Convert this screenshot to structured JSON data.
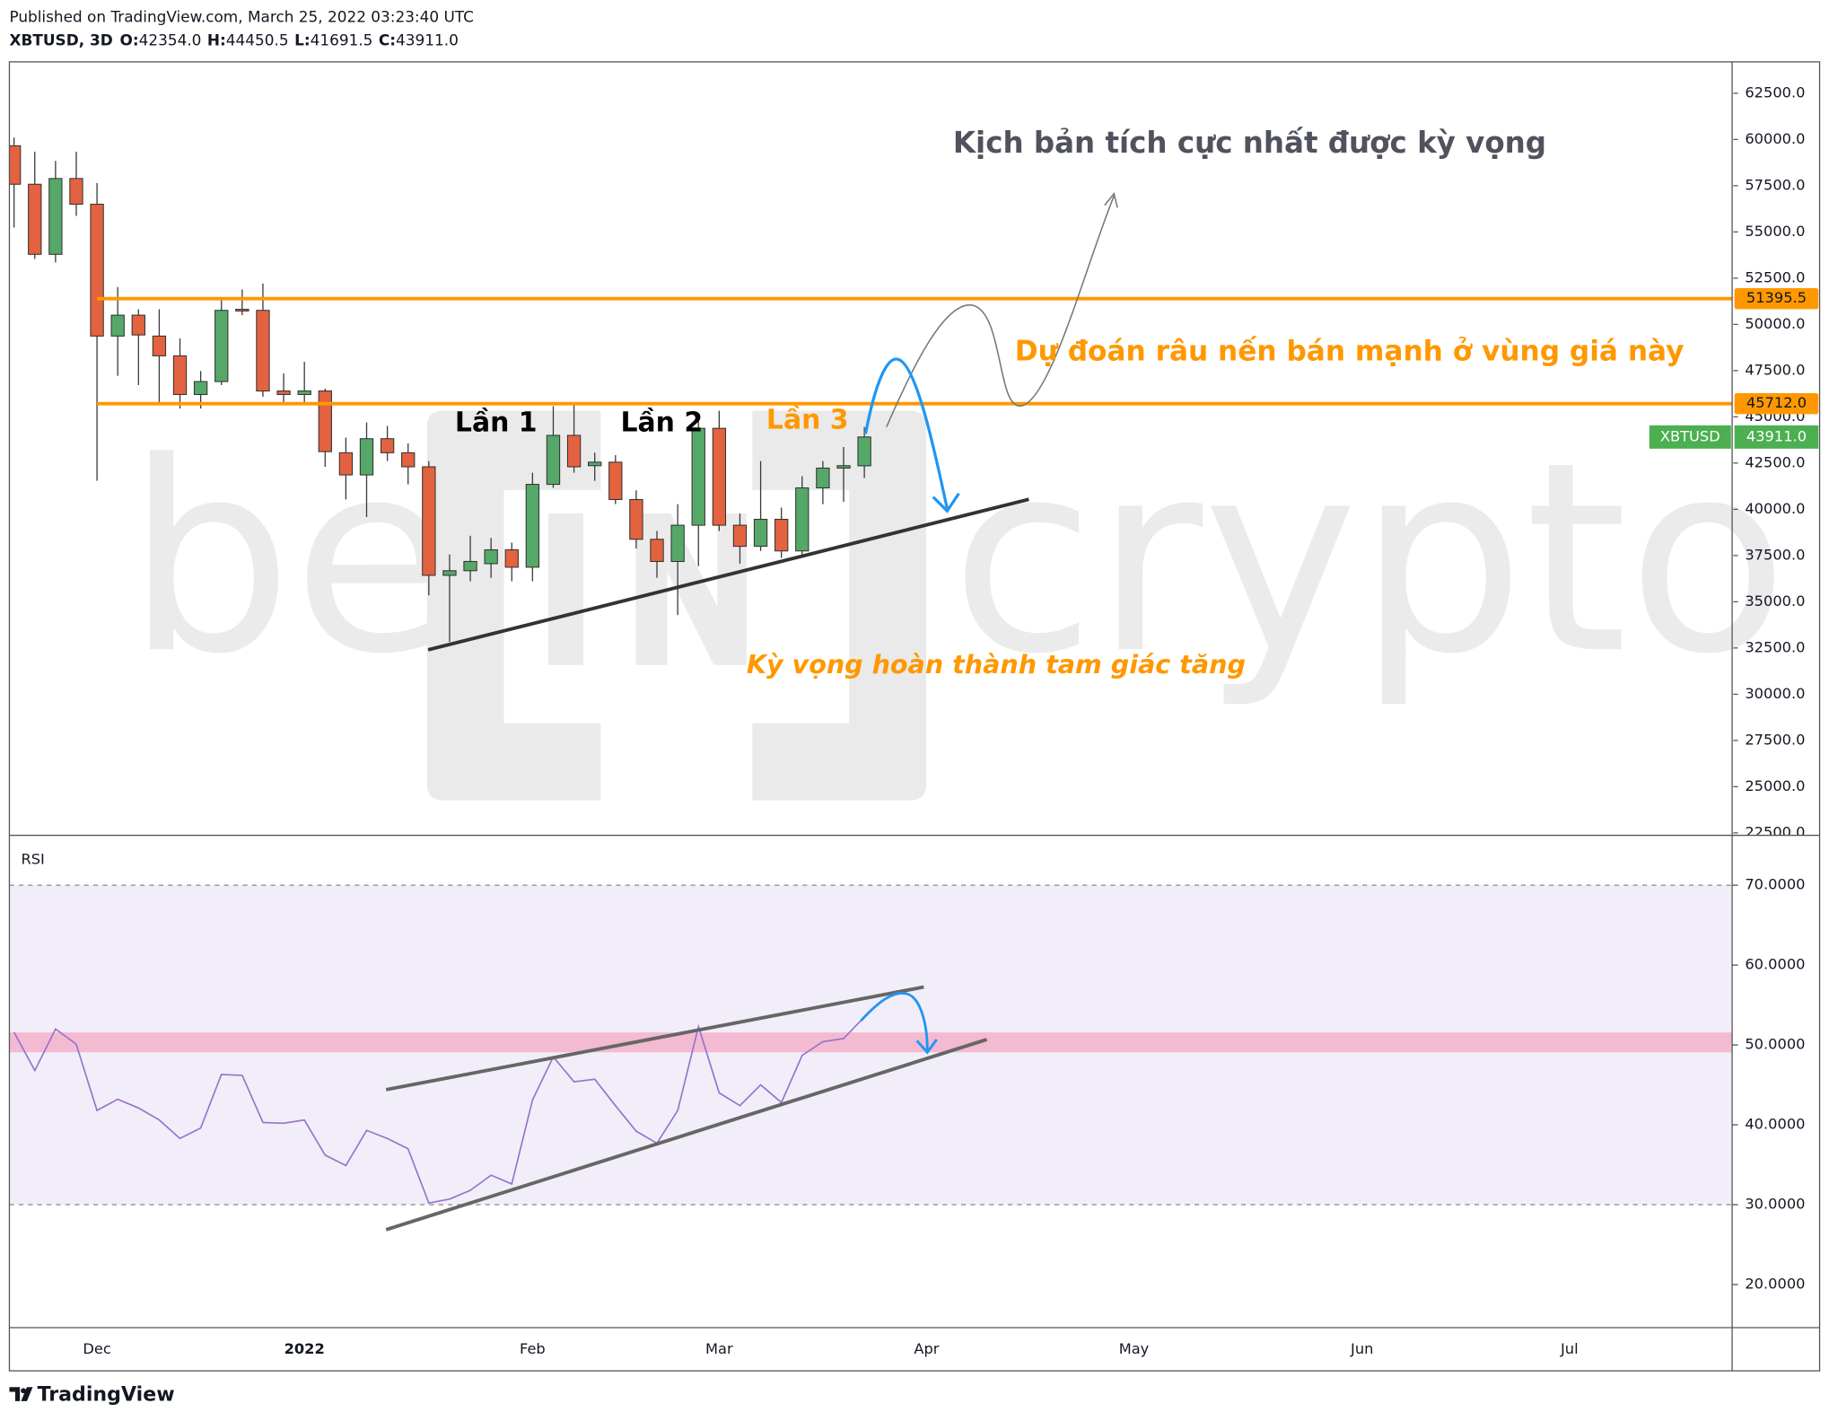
{
  "header": {
    "published": "Published on TradingView.com, March 25, 2022 03:23:40 UTC",
    "symbol": "XBTUSD, 3D",
    "ohlc": [
      {
        "key": "O:",
        "value": "42354.0"
      },
      {
        "key": "H:",
        "value": "44450.5"
      },
      {
        "key": "L:",
        "value": "41691.5"
      },
      {
        "key": "C:",
        "value": "43911.0"
      }
    ]
  },
  "watermark": {
    "left": "be",
    "right": "crypto"
  },
  "footer": {
    "brand": "TradingView"
  },
  "chart_data": [
    {
      "type": "candlestick",
      "categories": [
        null,
        null,
        null,
        null,
        "Dec",
        null,
        null,
        null,
        null,
        null,
        null,
        null,
        null,
        null,
        "2022",
        null,
        null,
        null,
        null,
        null,
        null,
        null,
        null,
        null,
        null,
        "Feb",
        null,
        null,
        null,
        null,
        null,
        null,
        null,
        null,
        "Mar",
        null,
        null,
        null,
        null,
        null,
        null,
        null,
        null,
        null,
        "Apr",
        null,
        null,
        null,
        null,
        null,
        null,
        null,
        null,
        null,
        "May",
        null,
        null,
        null,
        null,
        null,
        null,
        null,
        null,
        null,
        null,
        "Jun",
        null,
        null,
        null,
        null,
        null,
        null,
        null,
        null,
        null,
        "Jul",
        null,
        null,
        null,
        null,
        null,
        null,
        null
      ],
      "open": [
        59660,
        57580,
        53790,
        57890,
        56500,
        49370,
        50500,
        49370,
        48300,
        46210,
        46910,
        50820,
        50760,
        46400,
        46210,
        46400,
        43060,
        41860,
        43820,
        43060,
        42300,
        36430,
        36680,
        37060,
        37810,
        36870,
        41350,
        44000,
        42360,
        42550,
        40530,
        38380,
        37180,
        39140,
        44380,
        39140,
        38000,
        39460,
        37750,
        41160,
        42230,
        42354,
        null,
        null,
        null,
        null,
        null,
        null,
        null,
        null,
        null,
        null,
        null,
        null,
        null,
        null,
        null,
        null,
        null,
        null,
        null,
        null,
        null,
        null,
        null,
        null,
        null,
        null,
        null,
        null,
        null,
        null,
        null,
        null,
        null,
        null,
        null,
        null,
        null,
        null,
        null,
        null,
        null
      ],
      "high": [
        60100,
        59340,
        58840,
        59340,
        57640,
        52020,
        50820,
        50820,
        49240,
        47480,
        51450,
        51890,
        52210,
        47350,
        47980,
        46530,
        43880,
        44700,
        44510,
        43560,
        42610,
        37560,
        38570,
        38450,
        38200,
        41980,
        45580,
        45770,
        43060,
        42930,
        41030,
        38830,
        40280,
        44820,
        45330,
        39770,
        42610,
        40090,
        41790,
        42610,
        43370,
        44450.5,
        null,
        null,
        null,
        null,
        null,
        null,
        null,
        null,
        null,
        null,
        null,
        null,
        null,
        null,
        null,
        null,
        null,
        null,
        null,
        null,
        null,
        null,
        null,
        null,
        null,
        null,
        null,
        null,
        null,
        null,
        null,
        null,
        null,
        null,
        null,
        null,
        null,
        null,
        null,
        null,
        null
      ],
      "low": [
        55240,
        53540,
        53350,
        55870,
        41540,
        47220,
        46720,
        45770,
        45450,
        45450,
        46720,
        50500,
        46090,
        45770,
        45770,
        42300,
        40530,
        39580,
        42610,
        41350,
        35350,
        32830,
        36110,
        36300,
        36110,
        36110,
        41160,
        41980,
        41540,
        40280,
        37880,
        36300,
        34280,
        36930,
        38830,
        37060,
        37750,
        37370,
        37560,
        40280,
        40400,
        41691.5,
        null,
        null,
        null,
        null,
        null,
        null,
        null,
        null,
        null,
        null,
        null,
        null,
        null,
        null,
        null,
        null,
        null,
        null,
        null,
        null,
        null,
        null,
        null,
        null,
        null,
        null,
        null,
        null,
        null,
        null,
        null,
        null,
        null,
        null,
        null,
        null,
        null,
        null,
        null,
        null,
        null
      ],
      "close": [
        57580,
        53790,
        57890,
        56500,
        49370,
        50500,
        49430,
        48300,
        46210,
        46910,
        50760,
        50760,
        46400,
        46210,
        46400,
        43120,
        41860,
        43820,
        43060,
        42300,
        36430,
        36680,
        37180,
        37810,
        36870,
        41350,
        44000,
        42300,
        42550,
        40530,
        38380,
        37180,
        39140,
        44380,
        39140,
        38000,
        39460,
        37750,
        41160,
        42230,
        42360,
        43911,
        null,
        null,
        null,
        null,
        null,
        null,
        null,
        null,
        null,
        null,
        null,
        null,
        null,
        null,
        null,
        null,
        null,
        null,
        null,
        null,
        null,
        null,
        null,
        null,
        null,
        null,
        null,
        null,
        null,
        null,
        null,
        null,
        null,
        null,
        null,
        null,
        null,
        null,
        null,
        null,
        null
      ],
      "up_color": "#55a868",
      "down_color": "#e3623f",
      "ylim": [
        22370,
        64200
      ],
      "yticks": [
        {
          "value": 22500,
          "label": "22500.0"
        },
        {
          "value": 25000,
          "label": "25000.0"
        },
        {
          "value": 27500,
          "label": "27500.0"
        },
        {
          "value": 30000,
          "label": "30000.0"
        },
        {
          "value": 32500,
          "label": "32500.0"
        },
        {
          "value": 35000,
          "label": "35000.0"
        },
        {
          "value": 37500,
          "label": "37500.0"
        },
        {
          "value": 40000,
          "label": "40000.0"
        },
        {
          "value": 42500,
          "label": "42500.0"
        },
        {
          "value": 45000,
          "label": "45000.0"
        },
        {
          "value": 47500,
          "label": "47500.0"
        },
        {
          "value": 50000,
          "label": "50000.0"
        },
        {
          "value": 52500,
          "label": "52500.0"
        },
        {
          "value": 55000,
          "label": "55000.0"
        },
        {
          "value": 57500,
          "label": "57500.0"
        },
        {
          "value": 60000,
          "label": "60000.0"
        },
        {
          "value": 62500,
          "label": "62500.0"
        }
      ],
      "levels": [
        {
          "value": 51395.5,
          "label": "51395.5"
        },
        {
          "value": 45712,
          "label": "45712.0"
        }
      ],
      "level_color": "#ff9800",
      "last_price": {
        "name": "XBTUSD",
        "value": 43911,
        "label": "43911.0"
      },
      "annotations": {
        "scenario": "Kịch bản tích cực nhất được kỳ vọng",
        "wick": "Dự đoán râu nến bán mạnh ở vùng giá này",
        "try1": "Lần 1",
        "try2": "Lần 2",
        "try3": "Lần 3",
        "triangle": "Kỳ vọng hoàn thành tam giác tăng"
      }
    },
    {
      "type": "line",
      "title": "RSI",
      "color": "#9575cd",
      "values": [
        51.6,
        46.8,
        52.0,
        50.1,
        41.8,
        43.2,
        42.1,
        40.6,
        38.3,
        39.6,
        46.3,
        46.2,
        40.3,
        40.2,
        40.6,
        36.2,
        34.9,
        39.3,
        38.3,
        37.0,
        30.2,
        30.7,
        31.8,
        33.7,
        32.6,
        43.1,
        48.5,
        45.4,
        45.7,
        42.4,
        39.2,
        37.7,
        41.8,
        52.3,
        44.0,
        42.4,
        45.0,
        42.8,
        48.7,
        50.4,
        50.8,
        53.5,
        null,
        null,
        null,
        null,
        null,
        null,
        null,
        null,
        null,
        null,
        null,
        null,
        null,
        null,
        null,
        null,
        null,
        null,
        null,
        null,
        null,
        null,
        null,
        null,
        null,
        null,
        null,
        null,
        null,
        null,
        null,
        null,
        null,
        null,
        null,
        null,
        null,
        null,
        null,
        null,
        null
      ],
      "ylim": [
        14.6,
        76.1
      ],
      "yticks": [
        {
          "value": 20,
          "label": "20.0000"
        },
        {
          "value": 30,
          "label": "30.0000"
        },
        {
          "value": 40,
          "label": "40.0000"
        },
        {
          "value": 50,
          "label": "50.0000"
        },
        {
          "value": 60,
          "label": "60.0000"
        },
        {
          "value": 70,
          "label": "70.0000"
        }
      ],
      "band": [
        30,
        70
      ]
    }
  ]
}
